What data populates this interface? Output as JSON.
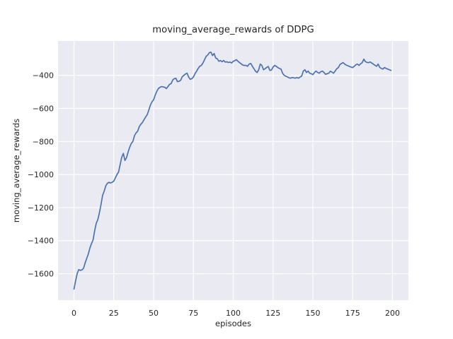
{
  "figure": {
    "background": "#ffffff"
  },
  "chart_data": {
    "type": "line",
    "title": "moving_average_rewards of DDPG",
    "xlabel": "episodes",
    "ylabel": "moving_average_rewards",
    "x_mode": "index (episode number 0-199)",
    "xlim": [
      -10,
      210
    ],
    "ylim": [
      -1760,
      -192
    ],
    "xticks": [
      0,
      25,
      50,
      75,
      100,
      125,
      150,
      175,
      200
    ],
    "xtick_labels": [
      "0",
      "25",
      "50",
      "75",
      "100",
      "125",
      "150",
      "175",
      "200"
    ],
    "yticks": [
      -400,
      -600,
      -800,
      -1000,
      -1200,
      -1400,
      -1600
    ],
    "ytick_labels": [
      "−400",
      "−600",
      "−800",
      "−1000",
      "−1200",
      "−1400",
      "−1600"
    ],
    "grid": true,
    "legend": "none",
    "series": [
      {
        "name": "moving_average_rewards",
        "color": "#4c72b0",
        "values": [
          -1693,
          -1645,
          -1600,
          -1575,
          -1580,
          -1577,
          -1568,
          -1535,
          -1508,
          -1481,
          -1445,
          -1418,
          -1396,
          -1340,
          -1295,
          -1272,
          -1230,
          -1180,
          -1125,
          -1100,
          -1068,
          -1053,
          -1047,
          -1051,
          -1047,
          -1040,
          -1020,
          -1000,
          -985,
          -940,
          -895,
          -872,
          -915,
          -898,
          -864,
          -835,
          -812,
          -800,
          -765,
          -748,
          -738,
          -710,
          -696,
          -685,
          -668,
          -652,
          -638,
          -610,
          -580,
          -560,
          -548,
          -520,
          -497,
          -480,
          -472,
          -468,
          -470,
          -472,
          -480,
          -468,
          -455,
          -450,
          -428,
          -420,
          -418,
          -438,
          -436,
          -430,
          -408,
          -400,
          -392,
          -387,
          -410,
          -424,
          -420,
          -410,
          -390,
          -375,
          -358,
          -345,
          -340,
          -325,
          -305,
          -285,
          -277,
          -263,
          -260,
          -280,
          -268,
          -295,
          -300,
          -315,
          -310,
          -318,
          -310,
          -320,
          -318,
          -322,
          -320,
          -325,
          -315,
          -311,
          -305,
          -315,
          -323,
          -330,
          -338,
          -340,
          -340,
          -345,
          -332,
          -328,
          -345,
          -360,
          -375,
          -383,
          -366,
          -332,
          -340,
          -366,
          -360,
          -352,
          -346,
          -370,
          -368,
          -350,
          -340,
          -345,
          -353,
          -358,
          -362,
          -387,
          -400,
          -405,
          -409,
          -415,
          -417,
          -413,
          -415,
          -417,
          -413,
          -417,
          -410,
          -404,
          -374,
          -366,
          -383,
          -374,
          -387,
          -390,
          -396,
          -383,
          -374,
          -382,
          -387,
          -378,
          -374,
          -383,
          -394,
          -390,
          -387,
          -375,
          -380,
          -387,
          -374,
          -360,
          -353,
          -335,
          -328,
          -323,
          -332,
          -338,
          -342,
          -346,
          -350,
          -353,
          -345,
          -336,
          -332,
          -340,
          -330,
          -323,
          -302,
          -317,
          -322,
          -323,
          -319,
          -326,
          -332,
          -339,
          -345,
          -332,
          -352,
          -358,
          -362,
          -353,
          -358,
          -362,
          -366,
          -370
        ]
      }
    ],
    "style": {
      "axes_background": "#eaeaf2",
      "grid_color": "#ffffff",
      "text_color": "#262626",
      "line_width": 1.7,
      "grid_width": 1.2
    }
  }
}
